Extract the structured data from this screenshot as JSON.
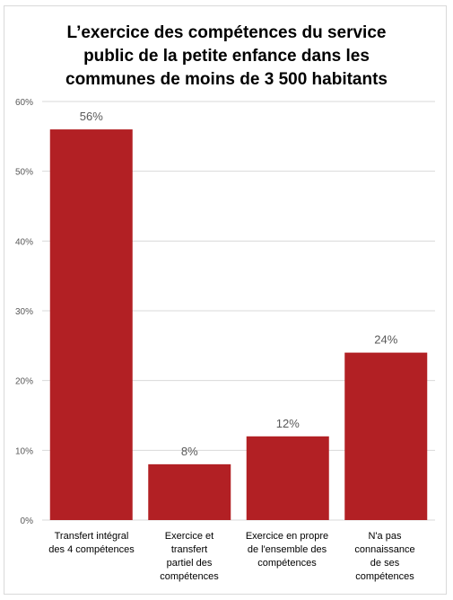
{
  "chart_data": {
    "type": "bar",
    "title_lines": [
      "L’exercice des compétences du service",
      "public de la petite enfance dans les",
      "communes de moins de 3 500 habitants"
    ],
    "categories": [
      "Transfert intégral\ndes 4 compétences",
      "Exercice et\ntransfert\npartiel des\ncompétences",
      "Exercice en propre\nde l'ensemble des\ncompétences",
      "N'a pas\nconnaissance\nde ses\ncompétences"
    ],
    "values": [
      56,
      8,
      12,
      24
    ],
    "data_labels": [
      "56%",
      "8%",
      "12%",
      "24%"
    ],
    "yticks": [
      "0%",
      "10%",
      "20%",
      "30%",
      "40%",
      "50%",
      "60%"
    ],
    "ylim": [
      0,
      60
    ],
    "grid": true,
    "legend": "none",
    "bar_color": "#b22024",
    "grid_color": "#d9d9d9",
    "label_color": "#595959"
  }
}
